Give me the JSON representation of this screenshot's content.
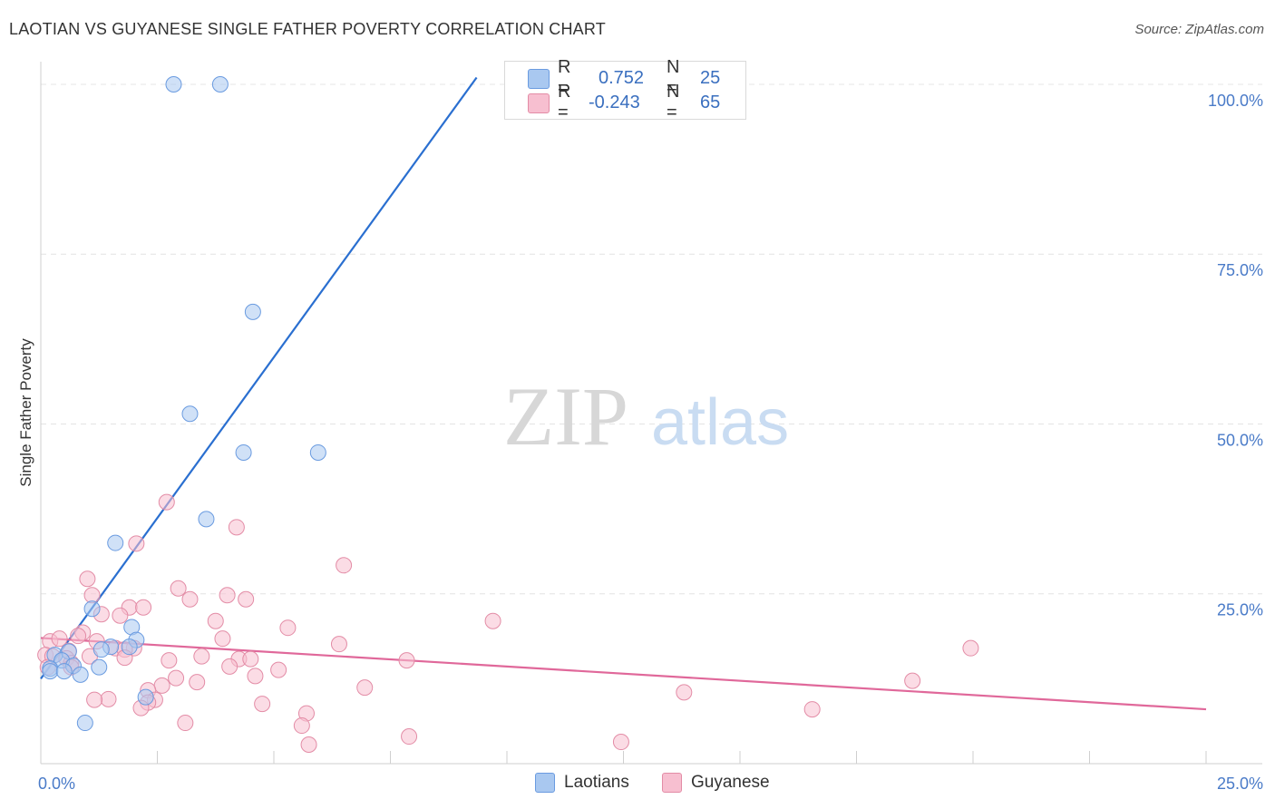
{
  "title": "LAOTIAN VS GUYANESE SINGLE FATHER POVERTY CORRELATION CHART",
  "source": "Source: ZipAtlas.com",
  "watermark": {
    "zip": "ZIP",
    "atlas": "atlas"
  },
  "stats": [
    {
      "r_label": "R =",
      "r_value": "0.752",
      "n_label": "N =",
      "n_value": "25",
      "color": "#a9c8f0",
      "border": "#6a9be0"
    },
    {
      "r_label": "R =",
      "r_value": "-0.243",
      "n_label": "N =",
      "n_value": "65",
      "color": "#f7bfd0",
      "border": "#e38ca6"
    }
  ],
  "legend": [
    {
      "label": "Laotians",
      "color": "#a9c8f0",
      "border": "#6a9be0"
    },
    {
      "label": "Guyanese",
      "color": "#f7bfd0",
      "border": "#e38ca6"
    }
  ],
  "chart_data": {
    "type": "scatter",
    "title": "LAOTIAN VS GUYANESE SINGLE FATHER POVERTY CORRELATION CHART",
    "xlabel": "",
    "ylabel": "Single Father Poverty",
    "xlim": [
      0,
      25
    ],
    "ylim": [
      0,
      102
    ],
    "x_tick_labels": [
      "0.0%",
      "25.0%"
    ],
    "y_ticks": [
      25,
      50,
      75,
      100
    ],
    "y_tick_labels": [
      "25.0%",
      "50.0%",
      "75.0%",
      "100.0%"
    ],
    "series": [
      {
        "name": "Laotians",
        "color": "#a9c8f0",
        "stroke": "#6a9be0",
        "trend_color": "#2a6fd0",
        "trend": [
          [
            0,
            12.5
          ],
          [
            9.35,
            101
          ]
        ],
        "points": [
          [
            2.85,
            100
          ],
          [
            3.85,
            100
          ],
          [
            4.55,
            66.5
          ],
          [
            3.2,
            51.5
          ],
          [
            4.35,
            45.8
          ],
          [
            5.95,
            45.8
          ],
          [
            3.55,
            36
          ],
          [
            1.6,
            32.5
          ],
          [
            1.1,
            22.8
          ],
          [
            1.95,
            20.1
          ],
          [
            2.05,
            18.2
          ],
          [
            1.5,
            17.2
          ],
          [
            1.9,
            17.2
          ],
          [
            1.3,
            16.8
          ],
          [
            0.6,
            16.5
          ],
          [
            0.3,
            16.0
          ],
          [
            0.45,
            15.2
          ],
          [
            0.7,
            14.4
          ],
          [
            1.25,
            14.2
          ],
          [
            0.2,
            14.0
          ],
          [
            0.2,
            13.6
          ],
          [
            0.5,
            13.6
          ],
          [
            0.85,
            13.1
          ],
          [
            2.25,
            9.8
          ],
          [
            0.95,
            6.0
          ]
        ]
      },
      {
        "name": "Guyanese",
        "color": "#f7bfd0",
        "stroke": "#e38ca6",
        "trend_color": "#e0689a",
        "trend": [
          [
            0,
            18.5
          ],
          [
            25,
            8.0
          ]
        ],
        "points": [
          [
            2.7,
            38.5
          ],
          [
            4.2,
            34.8
          ],
          [
            2.05,
            32.4
          ],
          [
            6.5,
            29.2
          ],
          [
            1.0,
            27.2
          ],
          [
            2.95,
            25.8
          ],
          [
            4.0,
            24.8
          ],
          [
            3.2,
            24.2
          ],
          [
            4.4,
            24.2
          ],
          [
            1.1,
            24.8
          ],
          [
            1.9,
            23.0
          ],
          [
            2.2,
            23.0
          ],
          [
            1.3,
            22.0
          ],
          [
            1.7,
            21.8
          ],
          [
            3.75,
            21.0
          ],
          [
            9.7,
            21.0
          ],
          [
            5.3,
            20.0
          ],
          [
            0.9,
            19.3
          ],
          [
            0.8,
            18.8
          ],
          [
            0.2,
            18.0
          ],
          [
            1.2,
            18.0
          ],
          [
            3.9,
            18.4
          ],
          [
            0.4,
            18.4
          ],
          [
            6.4,
            17.6
          ],
          [
            19.95,
            17.0
          ],
          [
            1.6,
            17.0
          ],
          [
            2.0,
            17.0
          ],
          [
            1.8,
            16.8
          ],
          [
            0.6,
            16.6
          ],
          [
            0.1,
            16.0
          ],
          [
            0.25,
            15.8
          ],
          [
            1.05,
            15.8
          ],
          [
            0.55,
            15.5
          ],
          [
            3.45,
            15.8
          ],
          [
            4.25,
            15.4
          ],
          [
            4.5,
            15.4
          ],
          [
            7.85,
            15.2
          ],
          [
            2.75,
            15.2
          ],
          [
            1.8,
            15.6
          ],
          [
            0.65,
            14.8
          ],
          [
            4.05,
            14.3
          ],
          [
            5.1,
            13.8
          ],
          [
            0.15,
            14.2
          ],
          [
            0.65,
            14.2
          ],
          [
            2.9,
            12.6
          ],
          [
            4.6,
            12.9
          ],
          [
            3.35,
            12.0
          ],
          [
            18.7,
            12.2
          ],
          [
            2.6,
            11.5
          ],
          [
            6.95,
            11.2
          ],
          [
            2.3,
            10.8
          ],
          [
            13.8,
            10.5
          ],
          [
            1.45,
            9.5
          ],
          [
            1.15,
            9.4
          ],
          [
            2.45,
            9.4
          ],
          [
            2.3,
            9.0
          ],
          [
            4.75,
            8.8
          ],
          [
            2.15,
            8.2
          ],
          [
            16.55,
            8.0
          ],
          [
            5.7,
            7.4
          ],
          [
            3.1,
            6.0
          ],
          [
            5.6,
            5.6
          ],
          [
            7.9,
            4.0
          ],
          [
            12.45,
            3.2
          ],
          [
            5.75,
            2.8
          ]
        ]
      }
    ]
  }
}
